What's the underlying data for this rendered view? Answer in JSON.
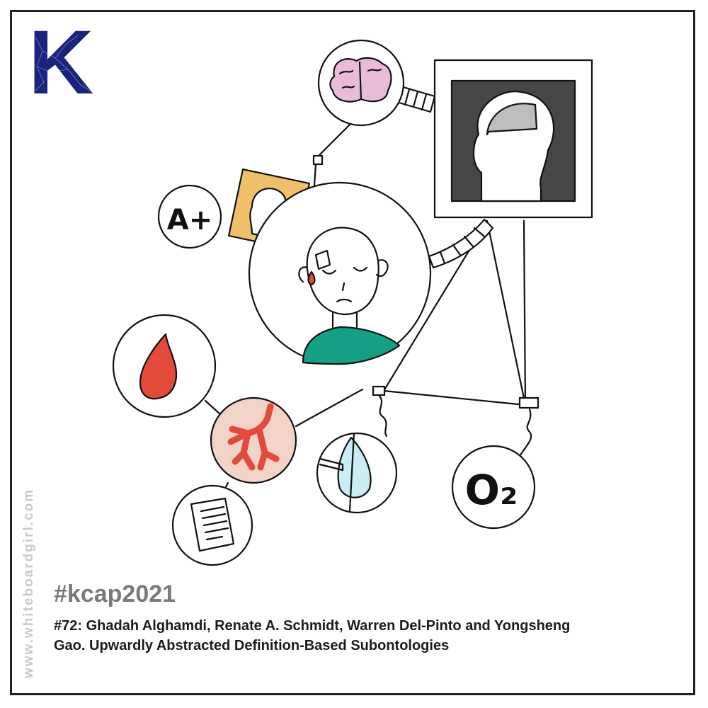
{
  "logo": {
    "letter": "K",
    "color": "#1a237e"
  },
  "watermark": "www.whiteboardgirl.com",
  "hashtag": "#kcap2021",
  "caption": {
    "line1": "#72: Ghadah Alghamdi, Renate A. Schmidt, Warren Del-Pinto and Yongsheng",
    "line2": "Gao. Upwardly Abstracted Definition-Based Subontologies"
  },
  "badges": {
    "grade": "A+",
    "oxygen": "O₂"
  },
  "colors": {
    "shirt": "#14a085",
    "blood": "#e34a3b",
    "lungs_bg": "#f3d2c7",
    "brain": "#e8bcd9",
    "portrait_bg": "#f0c069",
    "scan_bg": "#464646",
    "mask": "#c9ecf5"
  }
}
